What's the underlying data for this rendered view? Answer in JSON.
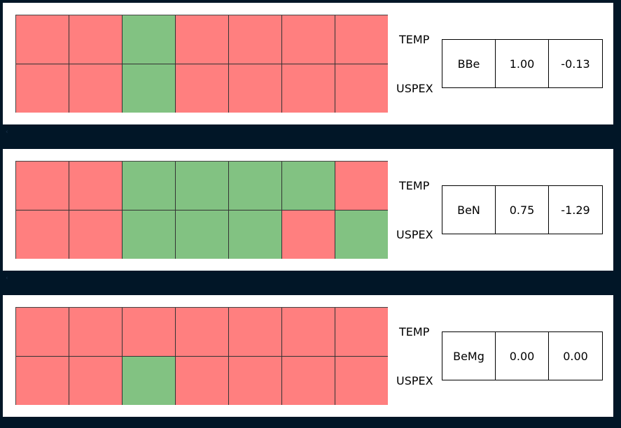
{
  "colors": {
    "match": "#82c282",
    "mismatch": "#ff7f7f",
    "background": "#011627"
  },
  "chart_data": {
    "type": "heatmap",
    "row_labels": [
      "TEMP",
      "USPEX"
    ],
    "legend": "none",
    "panels": [
      {
        "rows": [
          [
            0,
            0,
            1,
            0,
            0,
            0,
            0
          ],
          [
            0,
            0,
            1,
            0,
            0,
            0,
            0
          ]
        ],
        "table": [
          "BBe",
          "1.00",
          "-0.13"
        ]
      },
      {
        "rows": [
          [
            0,
            0,
            1,
            1,
            1,
            1,
            0
          ],
          [
            0,
            0,
            1,
            1,
            1,
            0,
            1
          ]
        ],
        "table": [
          "BeN",
          "0.75",
          "-1.29"
        ]
      },
      {
        "rows": [
          [
            0,
            0,
            0,
            0,
            0,
            0,
            0
          ],
          [
            0,
            0,
            1,
            0,
            0,
            0,
            0
          ]
        ],
        "table": [
          "BeMg",
          "0.00",
          "0.00"
        ]
      }
    ]
  }
}
